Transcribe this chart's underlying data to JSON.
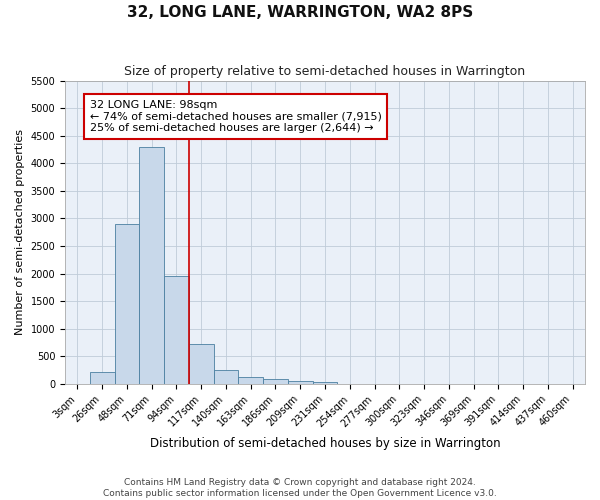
{
  "title": "32, LONG LANE, WARRINGTON, WA2 8PS",
  "subtitle": "Size of property relative to semi-detached houses in Warrington",
  "xlabel": "Distribution of semi-detached houses by size in Warrington",
  "ylabel": "Number of semi-detached properties",
  "categories": [
    "3sqm",
    "26sqm",
    "48sqm",
    "71sqm",
    "94sqm",
    "117sqm",
    "140sqm",
    "163sqm",
    "186sqm",
    "209sqm",
    "231sqm",
    "254sqm",
    "277sqm",
    "300sqm",
    "323sqm",
    "346sqm",
    "369sqm",
    "391sqm",
    "414sqm",
    "437sqm",
    "460sqm"
  ],
  "values": [
    0,
    220,
    2900,
    4300,
    1950,
    720,
    260,
    120,
    90,
    60,
    40,
    0,
    0,
    0,
    0,
    0,
    0,
    0,
    0,
    0,
    0
  ],
  "bar_color": "#c8d8ea",
  "bar_edge_color": "#4a7fa0",
  "property_line_color": "#cc0000",
  "annotation_text": "32 LONG LANE: 98sqm\n← 74% of semi-detached houses are smaller (7,915)\n25% of semi-detached houses are larger (2,644) →",
  "annotation_box_color": "#ffffff",
  "annotation_box_edge_color": "#cc0000",
  "ylim": [
    0,
    5500
  ],
  "yticks": [
    0,
    500,
    1000,
    1500,
    2000,
    2500,
    3000,
    3500,
    4000,
    4500,
    5000,
    5500
  ],
  "footer_line1": "Contains HM Land Registry data © Crown copyright and database right 2024.",
  "footer_line2": "Contains public sector information licensed under the Open Government Licence v3.0.",
  "background_color": "#ffffff",
  "plot_bg_color": "#eaf0f8",
  "grid_color": "#c0ccd8",
  "title_fontsize": 11,
  "subtitle_fontsize": 9,
  "axis_label_fontsize": 8,
  "tick_fontsize": 7,
  "annotation_fontsize": 8,
  "footer_fontsize": 6.5
}
